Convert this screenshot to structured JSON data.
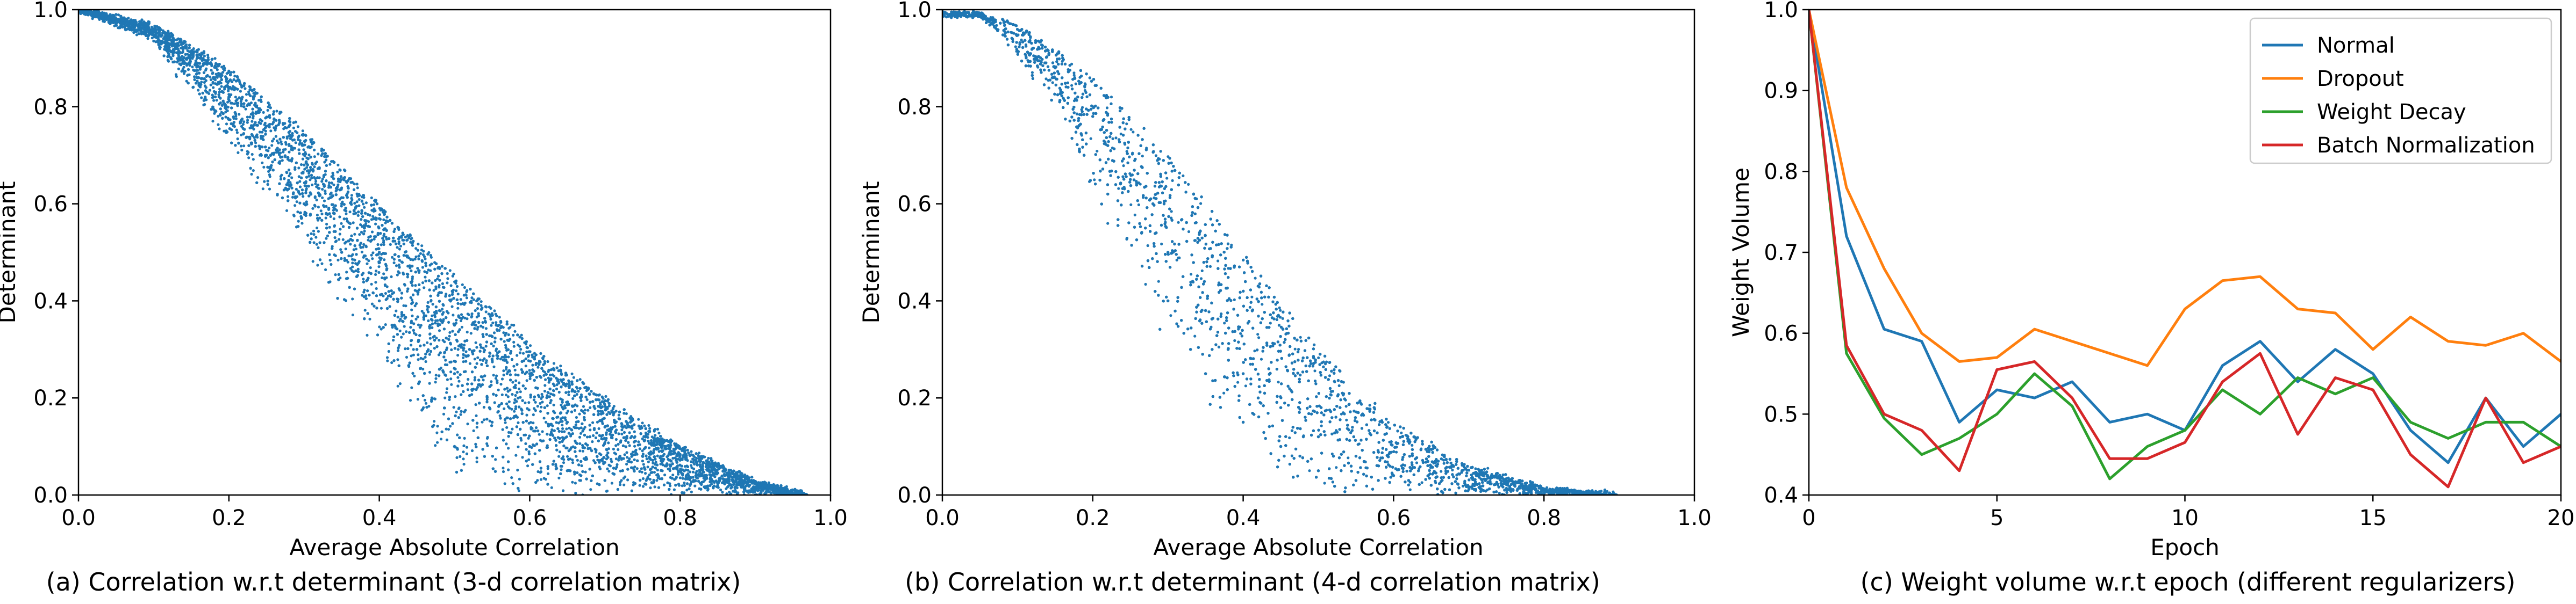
{
  "chart_data": [
    {
      "id": "a",
      "type": "scatter",
      "caption": "(a) Correlation w.r.t determinant (3-d correlation matrix)",
      "xlabel": "Average Absolute Correlation",
      "ylabel": "Determinant",
      "xlim": [
        0.0,
        1.0
      ],
      "ylim": [
        0.0,
        1.0
      ],
      "xticks": [
        "0.0",
        "0.2",
        "0.4",
        "0.6",
        "0.8",
        "1.0"
      ],
      "yticks": [
        "0.0",
        "0.2",
        "0.4",
        "0.6",
        "0.8",
        "1.0"
      ],
      "color": "#1f77b4",
      "upper_envelope": [
        [
          0.0,
          1.0
        ],
        [
          0.1,
          0.97
        ],
        [
          0.2,
          0.88
        ],
        [
          0.3,
          0.75
        ],
        [
          0.4,
          0.6
        ],
        [
          0.5,
          0.45
        ],
        [
          0.6,
          0.32
        ],
        [
          0.7,
          0.2
        ],
        [
          0.8,
          0.1
        ],
        [
          0.9,
          0.03
        ],
        [
          0.97,
          0.0
        ]
      ],
      "lower_envelope": [
        [
          0.0,
          1.0
        ],
        [
          0.1,
          0.93
        ],
        [
          0.2,
          0.72
        ],
        [
          0.3,
          0.5
        ],
        [
          0.4,
          0.28
        ],
        [
          0.45,
          0.14
        ],
        [
          0.5,
          0.02
        ],
        [
          0.55,
          0.0
        ],
        [
          0.97,
          0.0
        ]
      ],
      "points": [
        [
          0.05,
          0.99
        ],
        [
          0.08,
          0.97
        ],
        [
          0.12,
          0.94
        ],
        [
          0.15,
          0.91
        ],
        [
          0.18,
          0.86
        ],
        [
          0.2,
          0.82
        ],
        [
          0.22,
          0.8
        ],
        [
          0.25,
          0.76
        ],
        [
          0.25,
          0.7
        ],
        [
          0.28,
          0.72
        ],
        [
          0.3,
          0.68
        ],
        [
          0.3,
          0.6
        ],
        [
          0.32,
          0.62
        ],
        [
          0.33,
          0.55
        ],
        [
          0.35,
          0.6
        ],
        [
          0.35,
          0.5
        ],
        [
          0.37,
          0.45
        ],
        [
          0.38,
          0.55
        ],
        [
          0.4,
          0.5
        ],
        [
          0.4,
          0.4
        ],
        [
          0.42,
          0.35
        ],
        [
          0.43,
          0.48
        ],
        [
          0.45,
          0.42
        ],
        [
          0.45,
          0.3
        ],
        [
          0.47,
          0.2
        ],
        [
          0.48,
          0.38
        ],
        [
          0.5,
          0.35
        ],
        [
          0.5,
          0.25
        ],
        [
          0.5,
          0.1
        ],
        [
          0.52,
          0.3
        ],
        [
          0.55,
          0.28
        ],
        [
          0.55,
          0.15
        ],
        [
          0.57,
          0.22
        ],
        [
          0.6,
          0.25
        ],
        [
          0.6,
          0.1
        ],
        [
          0.62,
          0.18
        ],
        [
          0.65,
          0.15
        ],
        [
          0.65,
          0.05
        ],
        [
          0.68,
          0.12
        ],
        [
          0.7,
          0.14
        ],
        [
          0.7,
          0.03
        ],
        [
          0.72,
          0.08
        ],
        [
          0.75,
          0.08
        ],
        [
          0.78,
          0.06
        ],
        [
          0.8,
          0.05
        ],
        [
          0.82,
          0.03
        ],
        [
          0.85,
          0.02
        ],
        [
          0.9,
          0.01
        ],
        [
          0.95,
          0.0
        ]
      ]
    },
    {
      "id": "b",
      "type": "scatter",
      "caption": "(b) Correlation w.r.t determinant (4-d correlation matrix)",
      "xlabel": "Average Absolute Correlation",
      "ylabel": "Determinant",
      "xlim": [
        0.0,
        1.0
      ],
      "ylim": [
        0.0,
        1.0
      ],
      "xticks": [
        "0.0",
        "0.2",
        "0.4",
        "0.6",
        "0.8",
        "1.0"
      ],
      "yticks": [
        "0.0",
        "0.2",
        "0.4",
        "0.6",
        "0.8",
        "1.0"
      ],
      "color": "#1f77b4",
      "upper_envelope": [
        [
          0.05,
          0.99
        ],
        [
          0.1,
          0.97
        ],
        [
          0.2,
          0.86
        ],
        [
          0.3,
          0.7
        ],
        [
          0.4,
          0.5
        ],
        [
          0.5,
          0.3
        ],
        [
          0.6,
          0.15
        ],
        [
          0.7,
          0.06
        ],
        [
          0.8,
          0.015
        ],
        [
          0.9,
          0.0
        ]
      ],
      "lower_envelope": [
        [
          0.05,
          0.99
        ],
        [
          0.1,
          0.9
        ],
        [
          0.15,
          0.8
        ],
        [
          0.2,
          0.62
        ],
        [
          0.25,
          0.45
        ],
        [
          0.3,
          0.3
        ],
        [
          0.35,
          0.18
        ],
        [
          0.4,
          0.08
        ],
        [
          0.45,
          0.02
        ],
        [
          0.5,
          0.0
        ],
        [
          0.9,
          0.0
        ]
      ],
      "points": [
        [
          0.08,
          0.98
        ],
        [
          0.12,
          0.92
        ],
        [
          0.15,
          0.88
        ],
        [
          0.18,
          0.82
        ],
        [
          0.2,
          0.78
        ],
        [
          0.22,
          0.72
        ],
        [
          0.22,
          0.62
        ],
        [
          0.25,
          0.65
        ],
        [
          0.27,
          0.55
        ],
        [
          0.28,
          0.6
        ],
        [
          0.3,
          0.5
        ],
        [
          0.3,
          0.4
        ],
        [
          0.32,
          0.45
        ],
        [
          0.33,
          0.3
        ],
        [
          0.35,
          0.38
        ],
        [
          0.35,
          0.25
        ],
        [
          0.38,
          0.3
        ],
        [
          0.4,
          0.25
        ],
        [
          0.4,
          0.15
        ],
        [
          0.42,
          0.2
        ],
        [
          0.45,
          0.18
        ],
        [
          0.45,
          0.1
        ],
        [
          0.48,
          0.12
        ],
        [
          0.5,
          0.12
        ],
        [
          0.5,
          0.05
        ],
        [
          0.52,
          0.08
        ],
        [
          0.55,
          0.08
        ],
        [
          0.55,
          0.03
        ],
        [
          0.58,
          0.06
        ],
        [
          0.6,
          0.04
        ],
        [
          0.62,
          0.03
        ],
        [
          0.65,
          0.02
        ],
        [
          0.7,
          0.015
        ],
        [
          0.75,
          0.01
        ],
        [
          0.8,
          0.005
        ],
        [
          0.85,
          0.002
        ]
      ]
    },
    {
      "id": "c",
      "type": "line",
      "caption": "(c) Weight volume w.r.t epoch (different regularizers)",
      "xlabel": "Epoch",
      "ylabel": "Weight Volume",
      "xlim": [
        0,
        20
      ],
      "ylim": [
        0.4,
        1.0
      ],
      "xticks": [
        "0",
        "5",
        "10",
        "15",
        "20"
      ],
      "yticks": [
        "0.4",
        "0.5",
        "0.6",
        "0.7",
        "0.8",
        "0.9",
        "1.0"
      ],
      "legend_position": "top-right",
      "x": [
        0,
        1,
        2,
        3,
        4,
        5,
        6,
        7,
        8,
        9,
        10,
        11,
        12,
        13,
        14,
        15,
        16,
        17,
        18,
        19,
        20
      ],
      "series": [
        {
          "name": "Normal",
          "color": "#1f77b4",
          "values": [
            1.0,
            0.72,
            0.605,
            0.59,
            0.49,
            0.53,
            0.52,
            0.54,
            0.49,
            0.5,
            0.48,
            0.56,
            0.59,
            0.54,
            0.58,
            0.55,
            0.48,
            0.44,
            0.52,
            0.46,
            0.5
          ]
        },
        {
          "name": "Dropout",
          "color": "#ff7f0e",
          "values": [
            1.0,
            0.78,
            0.68,
            0.6,
            0.565,
            0.57,
            0.605,
            0.59,
            0.575,
            0.56,
            0.63,
            0.665,
            0.67,
            0.63,
            0.625,
            0.58,
            0.62,
            0.59,
            0.585,
            0.6,
            0.565
          ]
        },
        {
          "name": "Weight Decay",
          "color": "#2ca02c",
          "values": [
            1.0,
            0.575,
            0.495,
            0.45,
            0.47,
            0.5,
            0.55,
            0.51,
            0.42,
            0.46,
            0.48,
            0.53,
            0.5,
            0.545,
            0.525,
            0.545,
            0.49,
            0.47,
            0.49,
            0.49,
            0.46
          ]
        },
        {
          "name": "Batch Normalization",
          "color": "#d62728",
          "values": [
            1.0,
            0.585,
            0.5,
            0.48,
            0.43,
            0.555,
            0.565,
            0.52,
            0.445,
            0.445,
            0.465,
            0.54,
            0.575,
            0.475,
            0.545,
            0.53,
            0.45,
            0.41,
            0.52,
            0.44,
            0.46
          ]
        }
      ]
    }
  ]
}
